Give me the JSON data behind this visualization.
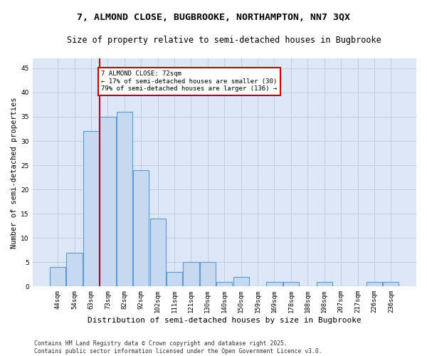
{
  "title1": "7, ALMOND CLOSE, BUGBROOKE, NORTHAMPTON, NN7 3QX",
  "title2": "Size of property relative to semi-detached houses in Bugbrooke",
  "xlabel": "Distribution of semi-detached houses by size in Bugbrooke",
  "ylabel": "Number of semi-detached properties",
  "footer1": "Contains HM Land Registry data © Crown copyright and database right 2025.",
  "footer2": "Contains public sector information licensed under the Open Government Licence v3.0.",
  "bar_labels": [
    "44sqm",
    "54sqm",
    "63sqm",
    "73sqm",
    "82sqm",
    "92sqm",
    "102sqm",
    "111sqm",
    "121sqm",
    "130sqm",
    "140sqm",
    "150sqm",
    "159sqm",
    "169sqm",
    "178sqm",
    "188sqm",
    "198sqm",
    "207sqm",
    "217sqm",
    "226sqm",
    "236sqm"
  ],
  "bar_values": [
    4,
    7,
    32,
    35,
    36,
    24,
    14,
    3,
    5,
    5,
    1,
    2,
    0,
    1,
    1,
    0,
    1,
    0,
    0,
    1,
    1
  ],
  "bar_color": "#c6d9f0",
  "bar_edgecolor": "#5b9bd5",
  "vline_color": "#c00000",
  "annotation_text": "7 ALMOND CLOSE: 72sqm\n← 17% of semi-detached houses are smaller (30)\n79% of semi-detached houses are larger (136) →",
  "box_color": "#c00000",
  "ylim": [
    0,
    47
  ],
  "yticks": [
    0,
    5,
    10,
    15,
    20,
    25,
    30,
    35,
    40,
    45
  ],
  "bg_color": "#ffffff",
  "plot_bg_color": "#dce8f5",
  "grid_color": "#c0cfe0",
  "title1_fontsize": 9.5,
  "title2_fontsize": 8.5,
  "xlabel_fontsize": 8,
  "ylabel_fontsize": 7.5,
  "tick_fontsize": 6.5,
  "annotation_fontsize": 6.5,
  "footer_fontsize": 5.8
}
